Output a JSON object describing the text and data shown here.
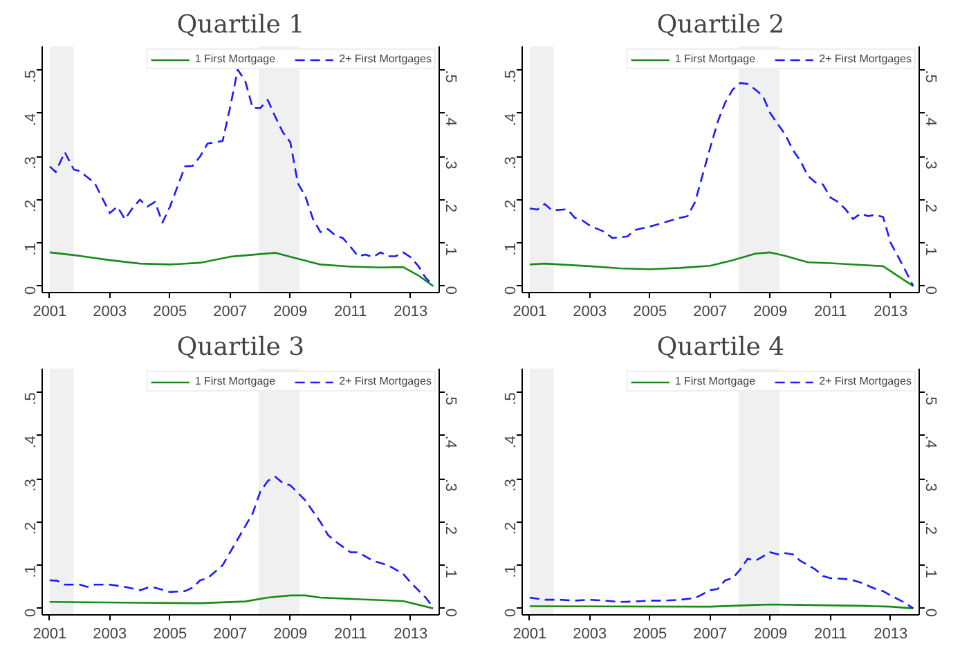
{
  "chart_data": [
    {
      "type": "line",
      "title": "Quartile 1",
      "xlim": [
        2000.75,
        2013.95
      ],
      "xticks": [
        2001,
        2003,
        2005,
        2007,
        2009,
        2011,
        2013
      ],
      "ylim": [
        -0.015,
        0.555
      ],
      "yticks": [
        0,
        {
          "value": 0.1,
          "label": ".1"
        },
        {
          "value": 0.2,
          "label": ".2"
        },
        {
          "value": 0.3,
          "label": ".3"
        },
        {
          "value": 0.4,
          "label": ".4"
        },
        {
          "value": 0.5,
          "label": ".5"
        }
      ],
      "y2lim": [
        -0.015,
        0.555
      ],
      "y2ticks": [
        0,
        {
          "value": 0.1,
          "label": ".1"
        },
        {
          "value": 0.2,
          "label": ".2"
        },
        {
          "value": 0.3,
          "label": ".3"
        },
        {
          "value": 0.4,
          "label": ".4"
        },
        {
          "value": 0.5,
          "label": ".5"
        }
      ],
      "grid": false,
      "legend": "top right",
      "bands": [
        {
          "axis": "x",
          "from": 2001.0,
          "to": 2001.8,
          "color": "#f0f0f0"
        },
        {
          "axis": "x",
          "from": 2007.95,
          "to": 2009.3,
          "color": "#f0f0f0"
        }
      ],
      "series": [
        {
          "name": "1 First Mortgage",
          "color": "#1a8a1a",
          "line_style": "solid",
          "x": [
            2001,
            2002,
            2003,
            2004,
            2005,
            2006,
            2007,
            2008,
            2008.5,
            2009,
            2010,
            2011,
            2012,
            2012.75,
            2013.25,
            2013.75
          ],
          "values": [
            0.078,
            0.07,
            0.06,
            0.052,
            0.05,
            0.054,
            0.068,
            0.074,
            0.077,
            0.068,
            0.05,
            0.045,
            0.043,
            0.044,
            0.025,
            0
          ]
        },
        {
          "name": "2+ First Mortgages",
          "color": "#1a1aff",
          "line_style": "dashed",
          "x": [
            2001,
            2001.2,
            2001.5,
            2001.8,
            2002,
            2002.5,
            2003,
            2003.25,
            2003.5,
            2003.75,
            2004,
            2004.25,
            2004.5,
            2004.75,
            2005,
            2005.5,
            2005.75,
            2006,
            2006.25,
            2006.75,
            2007,
            2007.25,
            2007.5,
            2007.75,
            2008,
            2008.25,
            2008.5,
            2008.75,
            2009,
            2009.25,
            2009.5,
            2009.75,
            2010,
            2010.25,
            2010.5,
            2010.75,
            2011,
            2011.25,
            2011.5,
            2011.75,
            2012,
            2012.25,
            2012.5,
            2012.75,
            2013,
            2013.25,
            2013.5,
            2013.75
          ],
          "values": [
            0.277,
            0.264,
            0.31,
            0.27,
            0.266,
            0.238,
            0.169,
            0.184,
            0.155,
            0.18,
            0.2,
            0.184,
            0.195,
            0.147,
            0.184,
            0.277,
            0.278,
            0.3,
            0.33,
            0.336,
            0.414,
            0.501,
            0.475,
            0.412,
            0.412,
            0.431,
            0.392,
            0.356,
            0.333,
            0.238,
            0.208,
            0.156,
            0.125,
            0.132,
            0.117,
            0.111,
            0.091,
            0.069,
            0.073,
            0.067,
            0.078,
            0.069,
            0.069,
            0.078,
            0.067,
            0.047,
            0.019,
            0.002
          ]
        }
      ]
    },
    {
      "type": "line",
      "title": "Quartile 2",
      "xlim": [
        2000.75,
        2013.95
      ],
      "xticks": [
        2001,
        2003,
        2005,
        2007,
        2009,
        2011,
        2013
      ],
      "ylim": [
        -0.015,
        0.555
      ],
      "yticks": [
        0,
        {
          "value": 0.1,
          "label": ".1"
        },
        {
          "value": 0.2,
          "label": ".2"
        },
        {
          "value": 0.3,
          "label": ".3"
        },
        {
          "value": 0.4,
          "label": ".4"
        },
        {
          "value": 0.5,
          "label": ".5"
        }
      ],
      "y2lim": [
        -0.015,
        0.555
      ],
      "y2ticks": [
        0,
        {
          "value": 0.1,
          "label": ".1"
        },
        {
          "value": 0.2,
          "label": ".2"
        },
        {
          "value": 0.3,
          "label": ".3"
        },
        {
          "value": 0.4,
          "label": ".4"
        },
        {
          "value": 0.5,
          "label": ".5"
        }
      ],
      "grid": false,
      "legend": "top right",
      "bands": [
        {
          "axis": "x",
          "from": 2001.0,
          "to": 2001.8,
          "color": "#f0f0f0"
        },
        {
          "axis": "x",
          "from": 2007.95,
          "to": 2009.3,
          "color": "#f0f0f0"
        }
      ],
      "series": [
        {
          "name": "1 First Mortgage",
          "color": "#1a8a1a",
          "line_style": "solid",
          "x": [
            2001,
            2001.5,
            2003,
            2004,
            2005,
            2006,
            2007,
            2007.75,
            2008.5,
            2009,
            2009.5,
            2010.25,
            2011,
            2012,
            2012.75,
            2013.75
          ],
          "values": [
            0.05,
            0.052,
            0.046,
            0.041,
            0.039,
            0.042,
            0.047,
            0.06,
            0.075,
            0.078,
            0.07,
            0.055,
            0.053,
            0.049,
            0.046,
            0
          ]
        },
        {
          "name": "2+ First Mortgages",
          "color": "#1a1aff",
          "line_style": "dashed",
          "x": [
            2001,
            2001.25,
            2001.5,
            2001.75,
            2002.25,
            2002.5,
            2002.75,
            2003,
            2003.5,
            2003.75,
            2004.25,
            2004.5,
            2005,
            2005.5,
            2006,
            2006.25,
            2006.5,
            2007,
            2007.25,
            2007.5,
            2007.75,
            2008,
            2008.25,
            2008.5,
            2008.75,
            2009,
            2009.5,
            2009.75,
            2010,
            2010.25,
            2010.5,
            2010.75,
            2011,
            2011.25,
            2011.5,
            2011.75,
            2012,
            2012.25,
            2012.5,
            2012.75,
            2013,
            2013.25,
            2013.5,
            2013.75
          ],
          "values": [
            0.18,
            0.177,
            0.19,
            0.175,
            0.178,
            0.158,
            0.152,
            0.14,
            0.125,
            0.111,
            0.115,
            0.13,
            0.138,
            0.148,
            0.158,
            0.162,
            0.195,
            0.32,
            0.38,
            0.425,
            0.455,
            0.47,
            0.468,
            0.455,
            0.44,
            0.4,
            0.35,
            0.315,
            0.29,
            0.255,
            0.24,
            0.235,
            0.205,
            0.195,
            0.178,
            0.155,
            0.168,
            0.162,
            0.165,
            0.16,
            0.1,
            0.068,
            0.035,
            0
          ]
        }
      ]
    },
    {
      "type": "line",
      "title": "Quartile 3",
      "xlim": [
        2000.75,
        2013.95
      ],
      "xticks": [
        2001,
        2003,
        2005,
        2007,
        2009,
        2011,
        2013
      ],
      "ylim": [
        -0.015,
        0.555
      ],
      "yticks": [
        0,
        {
          "value": 0.1,
          "label": ".1"
        },
        {
          "value": 0.2,
          "label": ".2"
        },
        {
          "value": 0.3,
          "label": ".3"
        },
        {
          "value": 0.4,
          "label": ".4"
        },
        {
          "value": 0.5,
          "label": ".5"
        }
      ],
      "y2lim": [
        -0.015,
        0.555
      ],
      "y2ticks": [
        0,
        {
          "value": 0.1,
          "label": ".1"
        },
        {
          "value": 0.2,
          "label": ".2"
        },
        {
          "value": 0.3,
          "label": ".3"
        },
        {
          "value": 0.4,
          "label": ".4"
        },
        {
          "value": 0.5,
          "label": ".5"
        }
      ],
      "grid": false,
      "legend": "top right",
      "bands": [
        {
          "axis": "x",
          "from": 2001.0,
          "to": 2001.8,
          "color": "#f0f0f0"
        },
        {
          "axis": "x",
          "from": 2007.95,
          "to": 2009.3,
          "color": "#f0f0f0"
        }
      ],
      "series": [
        {
          "name": "1 First Mortgage",
          "color": "#1a8a1a",
          "line_style": "solid",
          "x": [
            2001,
            2004,
            2006,
            2007.5,
            2008.25,
            2009,
            2009.5,
            2010,
            2011,
            2012.75,
            2013.75
          ],
          "values": [
            0.015,
            0.013,
            0.012,
            0.016,
            0.025,
            0.03,
            0.03,
            0.025,
            0.022,
            0.017,
            0
          ]
        },
        {
          "name": "2+ First Mortgages",
          "color": "#1a1aff",
          "line_style": "dashed",
          "x": [
            2001,
            2001.25,
            2001.5,
            2002,
            2002.25,
            2002.5,
            2003,
            2003.5,
            2004,
            2004.25,
            2004.5,
            2005,
            2005.5,
            2005.75,
            2006,
            2006.25,
            2006.75,
            2007,
            2007.5,
            2007.75,
            2008,
            2008.25,
            2008.5,
            2008.75,
            2009,
            2009.5,
            2010,
            2010.25,
            2010.5,
            2011,
            2011.25,
            2011.75,
            2012,
            2012.25,
            2012.75,
            2013,
            2013.5,
            2013.75
          ],
          "values": [
            0.065,
            0.064,
            0.055,
            0.055,
            0.05,
            0.055,
            0.055,
            0.05,
            0.042,
            0.048,
            0.048,
            0.038,
            0.04,
            0.048,
            0.065,
            0.07,
            0.1,
            0.13,
            0.19,
            0.22,
            0.27,
            0.295,
            0.305,
            0.29,
            0.285,
            0.25,
            0.2,
            0.17,
            0.155,
            0.13,
            0.13,
            0.11,
            0.105,
            0.1,
            0.08,
            0.06,
            0.025,
            0.002
          ]
        }
      ]
    },
    {
      "type": "line",
      "title": "Quartile 4",
      "xlim": [
        2000.75,
        2013.95
      ],
      "xticks": [
        2001,
        2003,
        2005,
        2007,
        2009,
        2011,
        2013
      ],
      "ylim": [
        -0.015,
        0.555
      ],
      "yticks": [
        0,
        {
          "value": 0.1,
          "label": ".1"
        },
        {
          "value": 0.2,
          "label": ".2"
        },
        {
          "value": 0.3,
          "label": ".3"
        },
        {
          "value": 0.4,
          "label": ".4"
        },
        {
          "value": 0.5,
          "label": ".5"
        }
      ],
      "y2lim": [
        -0.015,
        0.555
      ],
      "y2ticks": [
        0,
        {
          "value": 0.1,
          "label": ".1"
        },
        {
          "value": 0.2,
          "label": ".2"
        },
        {
          "value": 0.3,
          "label": ".3"
        },
        {
          "value": 0.4,
          "label": ".4"
        },
        {
          "value": 0.5,
          "label": ".5"
        }
      ],
      "grid": false,
      "legend": "top right",
      "bands": [
        {
          "axis": "x",
          "from": 2001.0,
          "to": 2001.8,
          "color": "#f0f0f0"
        },
        {
          "axis": "x",
          "from": 2007.95,
          "to": 2009.3,
          "color": "#f0f0f0"
        }
      ],
      "series": [
        {
          "name": "1 First Mortgage",
          "color": "#1a8a1a",
          "line_style": "solid",
          "x": [
            2001,
            2007,
            2008.5,
            2009,
            2010,
            2012,
            2013,
            2013.75
          ],
          "values": [
            0.005,
            0.004,
            0.008,
            0.009,
            0.008,
            0.006,
            0.004,
            0
          ]
        },
        {
          "name": "2+ First Mortgages",
          "color": "#1a1aff",
          "line_style": "dashed",
          "x": [
            2001,
            2001.5,
            2002,
            2002.5,
            2003,
            2003.5,
            2004,
            2004.5,
            2005,
            2005.5,
            2006,
            2006.5,
            2007,
            2007.25,
            2007.5,
            2007.75,
            2008,
            2008.25,
            2008.5,
            2008.75,
            2009,
            2009.25,
            2009.5,
            2009.75,
            2010,
            2010.25,
            2010.5,
            2010.75,
            2011,
            2011.5,
            2011.75,
            2012,
            2012.5,
            2012.75,
            2013,
            2013.5,
            2013.75
          ],
          "values": [
            0.025,
            0.02,
            0.02,
            0.018,
            0.02,
            0.018,
            0.015,
            0.016,
            0.018,
            0.018,
            0.02,
            0.024,
            0.042,
            0.045,
            0.065,
            0.07,
            0.09,
            0.115,
            0.11,
            0.12,
            0.13,
            0.125,
            0.128,
            0.125,
            0.11,
            0.1,
            0.09,
            0.075,
            0.07,
            0.068,
            0.065,
            0.06,
            0.045,
            0.04,
            0.03,
            0.012,
            0
          ]
        }
      ]
    }
  ]
}
